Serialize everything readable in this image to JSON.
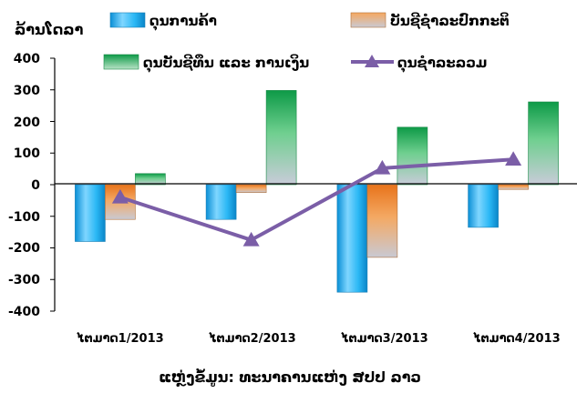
{
  "chart_data": {
    "type": "bar",
    "unit_label": "ລ້ານໂດລາ",
    "source": "ແຫຼ່ງຂໍ້ມູນ: ທະນາຄານແຫ່ງ ສປປ ລາວ",
    "categories": [
      "ໄຕມາດ1/2013",
      "ໄຕມາດ2/2013",
      "ໄຕມາດ3/2013",
      "ໄຕມາດ4/2013"
    ],
    "ylim": [
      -400,
      400
    ],
    "yticks": [
      400,
      300,
      200,
      100,
      0,
      -100,
      -200,
      -300,
      -400
    ],
    "grid": false,
    "series": [
      {
        "name": "ດຸນການຄ້າ",
        "type": "bar",
        "color": "#29b6f6",
        "values": [
          -180,
          -110,
          -340,
          -135
        ]
      },
      {
        "name": "ບັນຊີຊໍາລະປົກກະຕິ",
        "type": "bar",
        "color": "#f08a24",
        "values": [
          -110,
          -25,
          -230,
          -15
        ]
      },
      {
        "name": "ດຸນບັນຊີທຶນ ແລະ ການເງິນ",
        "type": "bar",
        "color": "#1faa59",
        "values": [
          35,
          298,
          182,
          262
        ]
      },
      {
        "name": "ດຸນຊໍາລະລວມ",
        "type": "line",
        "color": "#7b5ea7",
        "values": [
          -40,
          -175,
          52,
          80
        ]
      }
    ]
  }
}
